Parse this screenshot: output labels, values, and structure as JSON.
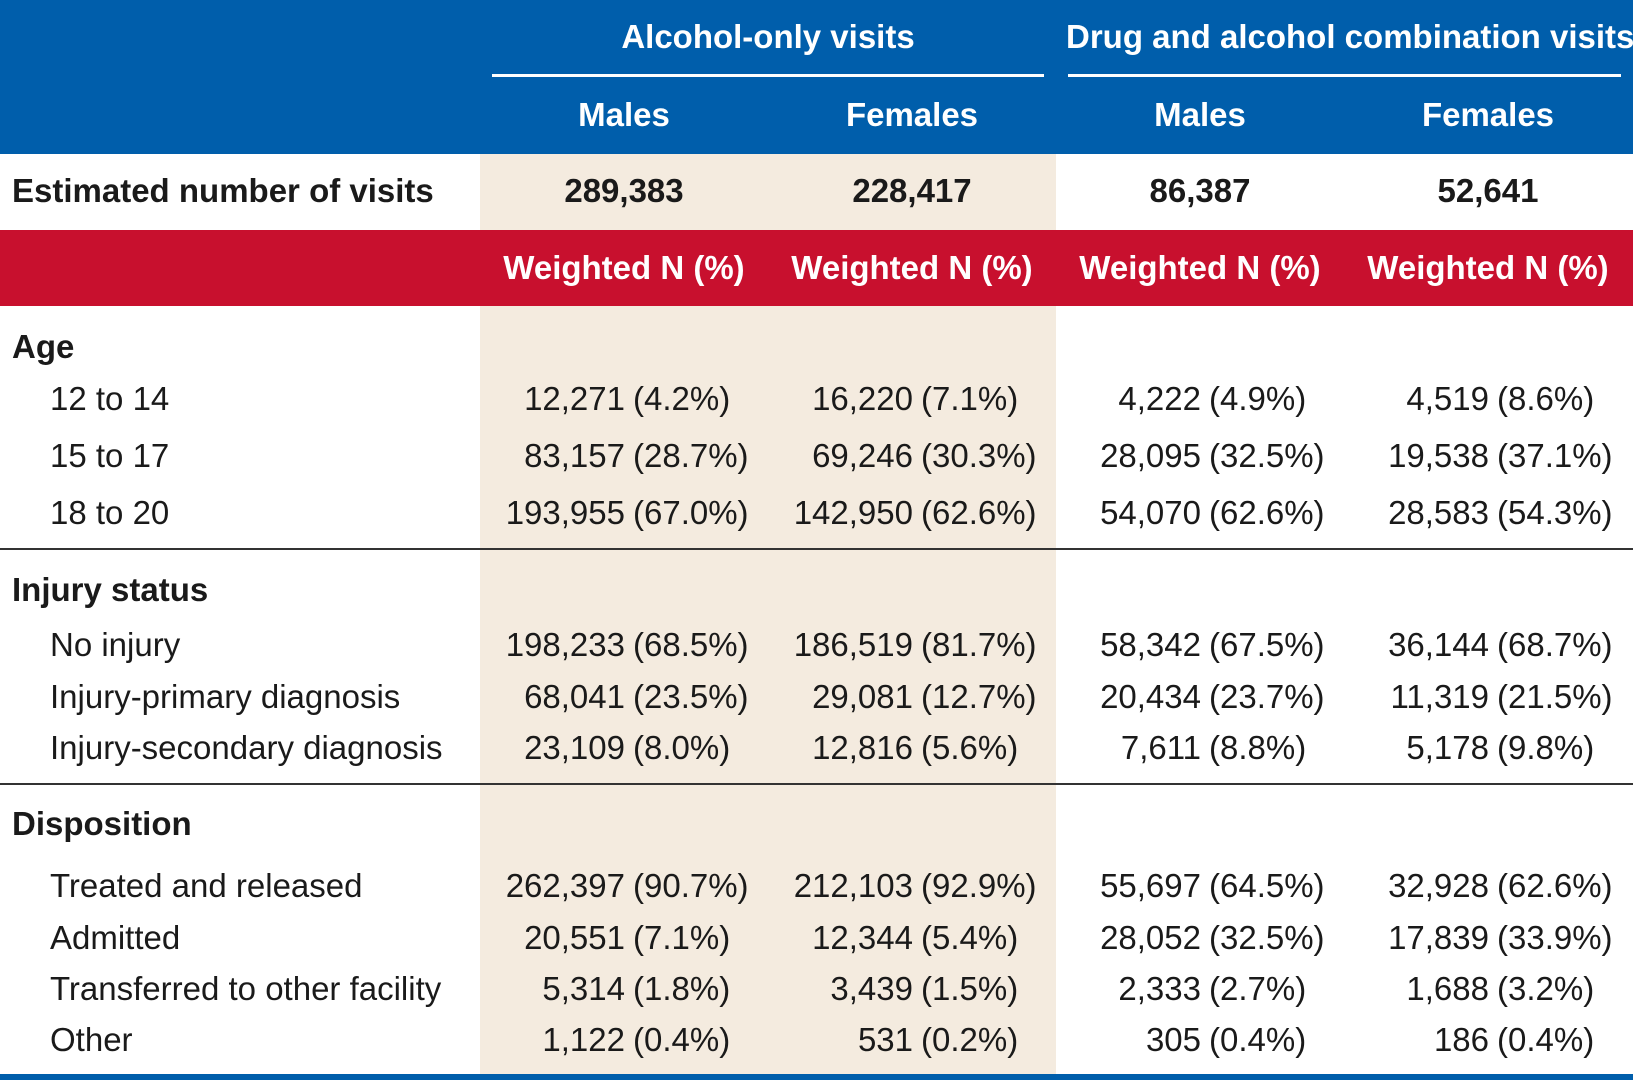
{
  "header": {
    "group_alcohol": "Alcohol-only visits",
    "group_combo": "Drug and alcohol combination visits",
    "col_males": "Males",
    "col_females": "Females"
  },
  "estimated": {
    "label": "Estimated number of visits",
    "values": [
      "289,383",
      "228,417",
      "86,387",
      "52,641"
    ]
  },
  "subheader": {
    "label": "Weighted N (%)"
  },
  "sections": [
    {
      "title": "Age",
      "rows": [
        {
          "label": "12 to 14",
          "cells": [
            [
              "12,271",
              "(4.2%)"
            ],
            [
              "16,220",
              "(7.1%)"
            ],
            [
              "4,222",
              "(4.9%)"
            ],
            [
              "4,519",
              "(8.6%)"
            ]
          ]
        },
        {
          "label": "15 to 17",
          "cells": [
            [
              "83,157",
              "(28.7%)"
            ],
            [
              "69,246",
              "(30.3%)"
            ],
            [
              "28,095",
              "(32.5%)"
            ],
            [
              "19,538",
              "(37.1%)"
            ]
          ]
        },
        {
          "label": "18 to 20",
          "cells": [
            [
              "193,955",
              "(67.0%)"
            ],
            [
              "142,950",
              "(62.6%)"
            ],
            [
              "54,070",
              "(62.6%)"
            ],
            [
              "28,583",
              "(54.3%)"
            ]
          ]
        }
      ]
    },
    {
      "title": "Injury status",
      "rows": [
        {
          "label": "No injury",
          "cells": [
            [
              "198,233",
              "(68.5%)"
            ],
            [
              "186,519",
              "(81.7%)"
            ],
            [
              "58,342",
              "(67.5%)"
            ],
            [
              "36,144",
              "(68.7%)"
            ]
          ]
        },
        {
          "label": "Injury-primary diagnosis",
          "cells": [
            [
              "68,041",
              "(23.5%)"
            ],
            [
              "29,081",
              "(12.7%)"
            ],
            [
              "20,434",
              "(23.7%)"
            ],
            [
              "11,319",
              "(21.5%)"
            ]
          ]
        },
        {
          "label": "Injury-secondary diagnosis",
          "cells": [
            [
              "23,109",
              "(8.0%)"
            ],
            [
              "12,816",
              "(5.6%)"
            ],
            [
              "7,611",
              "(8.8%)"
            ],
            [
              "5,178",
              "(9.8%)"
            ]
          ]
        }
      ]
    },
    {
      "title": "Disposition",
      "rows": [
        {
          "label": "Treated and released",
          "cells": [
            [
              "262,397",
              "(90.7%)"
            ],
            [
              "212,103",
              "(92.9%)"
            ],
            [
              "55,697",
              "(64.5%)"
            ],
            [
              "32,928",
              "(62.6%)"
            ]
          ]
        },
        {
          "label": "Admitted",
          "cells": [
            [
              "20,551",
              "(7.1%)"
            ],
            [
              "12,344",
              "(5.4%)"
            ],
            [
              "28,052",
              "(32.5%)"
            ],
            [
              "17,839",
              "(33.9%)"
            ]
          ]
        },
        {
          "label": "Transferred to other facility",
          "cells": [
            [
              "5,314",
              "(1.8%)"
            ],
            [
              "3,439",
              "(1.5%)"
            ],
            [
              "2,333",
              "(2.7%)"
            ],
            [
              "1,688",
              "(3.2%)"
            ]
          ]
        },
        {
          "label": "Other",
          "cells": [
            [
              "1,122",
              "(0.4%)"
            ],
            [
              "531",
              "(0.2%)"
            ],
            [
              "305",
              "(0.4%)"
            ],
            [
              "186",
              "(0.4%)"
            ]
          ]
        }
      ]
    }
  ],
  "colors": {
    "header_blue": "#005eab",
    "subheader_red": "#c8102e",
    "shade": "#f4ebdf"
  }
}
